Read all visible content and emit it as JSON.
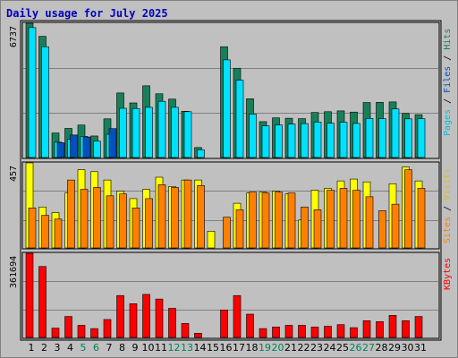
{
  "chart_data": {
    "type": "bar",
    "title": "Daily usage for July 2025",
    "categories": [
      "1",
      "2",
      "3",
      "4",
      "5",
      "6",
      "7",
      "8",
      "9",
      "10",
      "11",
      "12",
      "13",
      "14",
      "15",
      "16",
      "17",
      "18",
      "19",
      "20",
      "21",
      "22",
      "23",
      "24",
      "25",
      "26",
      "27",
      "28",
      "29",
      "30",
      "31"
    ],
    "weekend_days": [
      "5",
      "6",
      "12",
      "13",
      "19",
      "20",
      "26",
      "27"
    ],
    "panels": [
      {
        "name": "hits-files-pages",
        "max_label": "6737",
        "ylim": [
          0,
          6737
        ],
        "axis_labels": [
          "Pages",
          "Files",
          "Hits"
        ],
        "series": [
          {
            "name": "Hits",
            "color": "#188058",
            "values": [
              6737,
              6080,
              1230,
              1460,
              1630,
              1080,
              1940,
              3240,
              2740,
              3600,
              3200,
              2930,
              2320,
              500,
              0,
              5560,
              4480,
              2950,
              1800,
              1990,
              1970,
              1950,
              2260,
              2300,
              2340,
              2280,
              2760,
              2770,
              2790,
              2210,
              2150
            ]
          },
          {
            "name": "Files",
            "color": "#00e0ff",
            "values": [
              6520,
              5560,
              770,
              910,
              1060,
              820,
              1170,
              2470,
              2460,
              2520,
              2820,
              2520,
              2300,
              390,
              0,
              4900,
              3880,
              2180,
              1590,
              1630,
              1680,
              1700,
              1780,
              1720,
              1770,
              1710,
              1960,
              1950,
              2440,
              1940,
              1950
            ]
          },
          {
            "name": "Pages",
            "color": "#0050c0",
            "values": [
              0,
              0,
              740,
              1130,
              1030,
              0,
              1450,
              0,
              0,
              0,
              0,
              0,
              0,
              0,
              0,
              0,
              0,
              0,
              0,
              0,
              0,
              0,
              0,
              0,
              0,
              0,
              0,
              0,
              0,
              0,
              0
            ]
          }
        ]
      },
      {
        "name": "visits-sites",
        "max_label": "457",
        "ylim": [
          0,
          457
        ],
        "axis_labels": [
          "Sites",
          "Visits"
        ],
        "series": [
          {
            "name": "Visits",
            "color": "#ffff00",
            "values": [
              457,
              220,
              190,
              295,
              420,
              410,
              365,
              305,
              265,
              315,
              380,
              330,
              365,
              365,
              90,
              0,
              240,
              295,
              300,
              305,
              290,
              150,
              310,
              320,
              360,
              370,
              355,
              0,
              345,
              435,
              360
            ]
          },
          {
            "name": "Sites",
            "color": "#ff8000",
            "values": [
              215,
              175,
              155,
              365,
              315,
              325,
              280,
              290,
              215,
              265,
              340,
              325,
              365,
              335,
              0,
              165,
              205,
              300,
              295,
              300,
              295,
              220,
              205,
              310,
              320,
              310,
              275,
              200,
              235,
              420,
              320
            ]
          }
        ]
      },
      {
        "name": "kbytes",
        "max_label": "361694",
        "ylim": [
          0,
          361694
        ],
        "axis_labels": [
          "KBytes"
        ],
        "series": [
          {
            "name": "KBytes",
            "color": "#ff0000",
            "values": [
              361694,
              305000,
              40000,
              90000,
              52000,
              38000,
              77000,
              180000,
              145000,
              185000,
              165000,
              125000,
              60000,
              18000,
              0,
              118000,
              180000,
              100000,
              38000,
              45000,
              52000,
              52000,
              45000,
              48000,
              55000,
              42000,
              72000,
              68000,
              95000,
              72000,
              90000
            ]
          }
        ]
      }
    ]
  }
}
